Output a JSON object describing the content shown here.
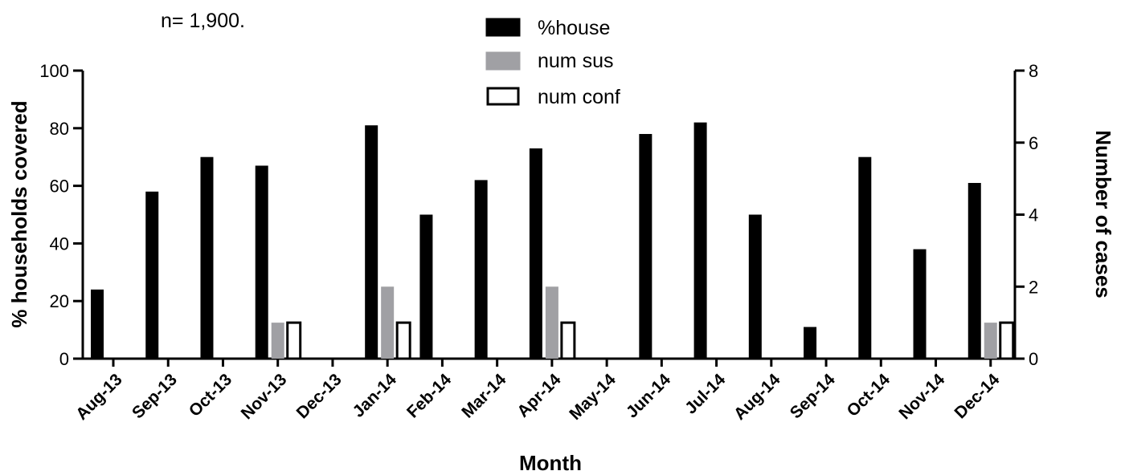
{
  "note": "n= 1,900.",
  "chart_data": {
    "type": "bar",
    "xlabel": "Month",
    "ylabel": "% households covered",
    "y2label": "Number of cases",
    "ylim": [
      0,
      100
    ],
    "y2lim": [
      0,
      8
    ],
    "yticks": [
      "0",
      "20",
      "40",
      "60",
      "80",
      "100"
    ],
    "y2ticks": [
      "0",
      "2",
      "4",
      "6",
      "8"
    ],
    "categories": [
      "Aug-13",
      "Sep-13",
      "Oct-13",
      "Nov-13",
      "Dec-13",
      "Jan-14",
      "Feb-14",
      "Mar-14",
      "Apr-14",
      "May-14",
      "Jun-14",
      "Jul-14",
      "Aug-14",
      "Sep-14",
      "Oct-14",
      "Nov-14",
      "Dec-14"
    ],
    "series": [
      {
        "name": "%house",
        "axis": "left",
        "color": "#000000",
        "values": [
          24,
          58,
          70,
          67,
          0,
          81,
          50,
          62,
          73,
          0,
          78,
          82,
          50,
          11,
          70,
          38,
          61
        ]
      },
      {
        "name": "num sus",
        "axis": "right",
        "color": "#a0a0a4",
        "values": [
          0,
          0,
          0,
          1,
          0,
          2,
          0,
          0,
          2,
          0,
          0,
          0,
          0,
          0,
          0,
          0,
          1
        ]
      },
      {
        "name": "num conf",
        "axis": "right",
        "color": "#ffffff",
        "outline": "#000000",
        "values": [
          0,
          0,
          0,
          1,
          0,
          1,
          0,
          0,
          1,
          0,
          0,
          0,
          0,
          0,
          0,
          0,
          1
        ]
      }
    ],
    "legend_position": "top-center",
    "grid": false
  }
}
